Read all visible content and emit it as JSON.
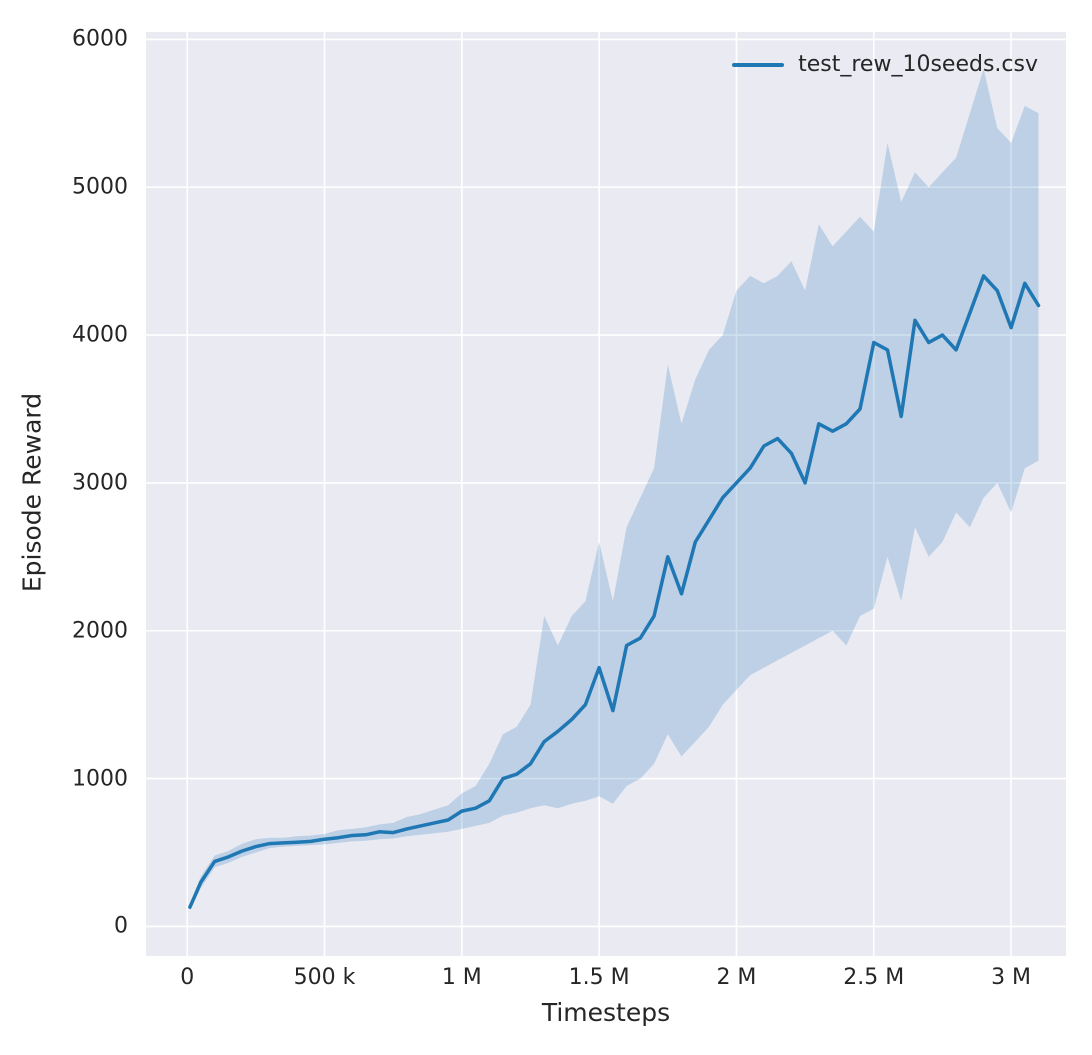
{
  "figure": {
    "background": "#ffffff",
    "plot_background": "#eaeaf2",
    "grid_color": "#ffffff",
    "text_color": "#262626"
  },
  "chart_data": {
    "type": "line",
    "title": "",
    "xlabel": "Timesteps",
    "ylabel": "Episode Reward",
    "grid": true,
    "legend_position": "upper right",
    "legend": [
      {
        "label": "test_rew_10seeds.csv",
        "color": "#1f77b4"
      }
    ],
    "xlim": [
      -150000,
      3200000
    ],
    "ylim": [
      -200,
      6050
    ],
    "xticks": [
      {
        "value": 0,
        "label": "0"
      },
      {
        "value": 500000,
        "label": "500 k"
      },
      {
        "value": 1000000,
        "label": "1 M"
      },
      {
        "value": 1500000,
        "label": "1.5 M"
      },
      {
        "value": 2000000,
        "label": "2 M"
      },
      {
        "value": 2500000,
        "label": "2.5 M"
      },
      {
        "value": 3000000,
        "label": "3 M"
      }
    ],
    "yticks": [
      {
        "value": 0,
        "label": "0"
      },
      {
        "value": 1000,
        "label": "1000"
      },
      {
        "value": 2000,
        "label": "2000"
      },
      {
        "value": 3000,
        "label": "3000"
      },
      {
        "value": 4000,
        "label": "4000"
      },
      {
        "value": 5000,
        "label": "5000"
      },
      {
        "value": 6000,
        "label": "6000"
      }
    ],
    "series": [
      {
        "name": "test_rew_10seeds.csv",
        "color": "#1f77b4",
        "band_opacity": 0.22,
        "x": [
          10000,
          50000,
          100000,
          150000,
          200000,
          250000,
          300000,
          350000,
          400000,
          450000,
          500000,
          550000,
          600000,
          650000,
          700000,
          750000,
          800000,
          850000,
          900000,
          950000,
          1000000,
          1050000,
          1100000,
          1150000,
          1200000,
          1250000,
          1300000,
          1350000,
          1400000,
          1450000,
          1500000,
          1550000,
          1600000,
          1650000,
          1700000,
          1750000,
          1800000,
          1850000,
          1900000,
          1950000,
          2000000,
          2050000,
          2100000,
          2150000,
          2200000,
          2250000,
          2300000,
          2350000,
          2400000,
          2450000,
          2500000,
          2550000,
          2600000,
          2650000,
          2700000,
          2750000,
          2800000,
          2850000,
          2900000,
          2950000,
          3000000,
          3050000,
          3100000
        ],
        "mean": [
          130,
          300,
          440,
          470,
          510,
          540,
          560,
          565,
          570,
          575,
          590,
          600,
          615,
          620,
          640,
          635,
          660,
          680,
          700,
          720,
          780,
          800,
          850,
          1000,
          1030,
          1100,
          1250,
          1320,
          1400,
          1500,
          1750,
          1460,
          1900,
          1950,
          2100,
          2500,
          2250,
          2600,
          2750,
          2900,
          3000,
          3100,
          3250,
          3300,
          3200,
          3000,
          3400,
          3350,
          3400,
          3500,
          3950,
          3900,
          3450,
          4100,
          3950,
          4000,
          3900,
          4150,
          4400,
          4300,
          4050,
          4350,
          4200
        ],
        "lower": [
          110,
          260,
          400,
          430,
          470,
          500,
          530,
          540,
          545,
          550,
          555,
          565,
          575,
          580,
          590,
          595,
          610,
          620,
          630,
          640,
          660,
          680,
          700,
          750,
          770,
          800,
          820,
          800,
          830,
          850,
          880,
          830,
          950,
          1000,
          1100,
          1300,
          1150,
          1250,
          1350,
          1500,
          1600,
          1700,
          1750,
          1800,
          1850,
          1900,
          1950,
          2000,
          1900,
          2100,
          2150,
          2500,
          2200,
          2700,
          2500,
          2600,
          2800,
          2700,
          2900,
          3000,
          2800,
          3100,
          3150
        ],
        "upper": [
          150,
          340,
          480,
          510,
          560,
          590,
          600,
          600,
          610,
          615,
          625,
          650,
          660,
          670,
          690,
          700,
          740,
          760,
          790,
          820,
          900,
          950,
          1100,
          1300,
          1350,
          1500,
          2100,
          1900,
          2100,
          2200,
          2600,
          2200,
          2700,
          2900,
          3100,
          3800,
          3400,
          3700,
          3900,
          4000,
          4300,
          4400,
          4350,
          4400,
          4500,
          4300,
          4750,
          4600,
          4700,
          4800,
          4700,
          5300,
          4900,
          5100,
          5000,
          5100,
          5200,
          5500,
          5800,
          5400,
          5300,
          5550,
          5500
        ]
      }
    ]
  }
}
